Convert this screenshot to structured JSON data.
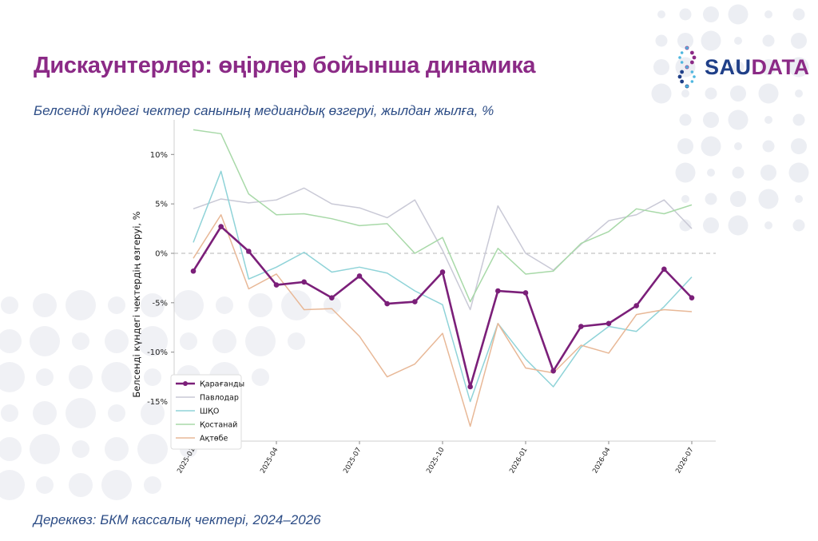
{
  "header": {
    "title": "Дискаунтерлер: өңірлер бойынша динамика",
    "subtitle": "Белсенді күндегі чектер санының медиандық өзгеруі, жылдан жылға, %"
  },
  "footer": {
    "source": "Дереккөз: БКМ кассалық чектері, 2024–2026"
  },
  "logo": {
    "part1": "SAU",
    "part2": "DATA",
    "icon": "dna-dots-icon"
  },
  "colors": {
    "title": "#8b2a86",
    "subtitle": "#2d4d86",
    "logo_blue": "#1f3f88",
    "logo_purple": "#8b2a86"
  },
  "chart_data": {
    "type": "line",
    "ylabel": "Белсенді күндегі чектердің өзгеруі, %",
    "ylim": [
      -19,
      13.5
    ],
    "y_ticks": [
      10,
      5,
      0,
      -5,
      -10,
      -15
    ],
    "y_tick_labels": [
      "10%",
      "5%",
      "0%",
      "-5%",
      "-10%",
      "-15%"
    ],
    "x": [
      "2025-01",
      "2025-02",
      "2025-03",
      "2025-04",
      "2025-05",
      "2025-06",
      "2025-07",
      "2025-08",
      "2025-09",
      "2025-10",
      "2025-11",
      "2025-12",
      "2026-01",
      "2026-02",
      "2026-03",
      "2026-04",
      "2026-05",
      "2026-06",
      "2026-07"
    ],
    "x_tick_labels": [
      "2025-01",
      "2025-04",
      "2025-07",
      "2025-10",
      "2026-01",
      "2026-04",
      "2026-07"
    ],
    "zero_line": true,
    "grid": false,
    "legend_position": "bottom-left",
    "series": [
      {
        "name": "Қарағанды",
        "color": "#7b1f79",
        "highlight": true,
        "values": [
          -1.8,
          2.7,
          0.2,
          -3.2,
          -2.9,
          -4.5,
          -2.3,
          -5.1,
          -4.9,
          -1.9,
          -13.5,
          -3.8,
          -4.0,
          -11.9,
          -7.4,
          -7.1,
          -5.3,
          -1.6,
          -4.5
        ]
      },
      {
        "name": "Павлодар",
        "color": "#c9c9d6",
        "values": [
          4.5,
          5.5,
          5.1,
          5.4,
          6.6,
          5.0,
          4.6,
          3.6,
          5.4,
          0.3,
          -5.7,
          4.8,
          0.0,
          -1.7,
          0.9,
          3.3,
          3.9,
          5.4,
          2.5
        ]
      },
      {
        "name": "ШҚО",
        "color": "#8fd3d8",
        "values": [
          1.1,
          8.3,
          -2.6,
          -1.4,
          0.1,
          -1.9,
          -1.4,
          -2.0,
          -3.8,
          -5.2,
          -15.0,
          -7.1,
          -10.7,
          -13.5,
          -9.5,
          -7.4,
          -7.9,
          -5.4,
          -2.4
        ]
      },
      {
        "name": "Қостанай",
        "color": "#a8d9a8",
        "values": [
          12.5,
          12.1,
          6.0,
          3.9,
          4.0,
          3.5,
          2.8,
          3.0,
          0.0,
          1.6,
          -4.9,
          0.5,
          -2.1,
          -1.8,
          1.0,
          2.2,
          4.5,
          4.0,
          4.9
        ]
      },
      {
        "name": "Ақтөбе",
        "color": "#e8b897",
        "values": [
          -0.5,
          3.9,
          -3.6,
          -2.1,
          -5.7,
          -5.6,
          -8.4,
          -12.5,
          -11.2,
          -8.1,
          -17.5,
          -7.1,
          -11.6,
          -12.1,
          -9.3,
          -10.1,
          -6.2,
          -5.7,
          -5.9
        ]
      }
    ]
  }
}
